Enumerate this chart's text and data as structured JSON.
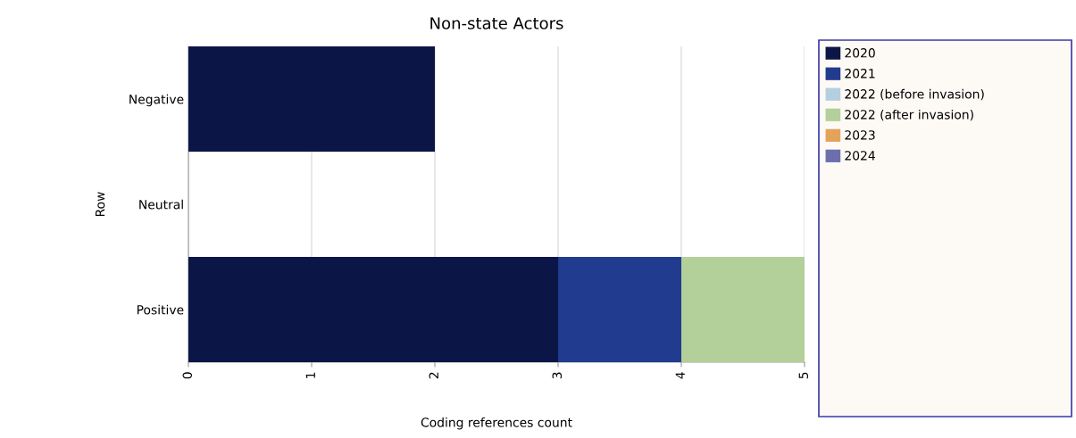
{
  "chart_data": {
    "type": "bar",
    "orientation": "horizontal",
    "stacked": true,
    "title": "Non-state Actors",
    "xlabel": "Coding references count",
    "ylabel": "Row",
    "categories": [
      "Negative",
      "Neutral",
      "Positive"
    ],
    "series": [
      {
        "name": "2020",
        "color": "#0b1646",
        "values": [
          2,
          0,
          3
        ]
      },
      {
        "name": "2021",
        "color": "#213b8f",
        "values": [
          0,
          0,
          1
        ]
      },
      {
        "name": "2022 (before invasion)",
        "color": "#b4cfe0",
        "values": [
          0,
          0,
          0
        ]
      },
      {
        "name": "2022 (after invasion)",
        "color": "#b3cf9a",
        "values": [
          0,
          0,
          1
        ]
      },
      {
        "name": "2023",
        "color": "#e3a35a",
        "values": [
          0,
          0,
          0
        ]
      },
      {
        "name": "2024",
        "color": "#6b6fae",
        "values": [
          0,
          0,
          0
        ]
      }
    ],
    "xlim": [
      0,
      5
    ],
    "xticks": [
      0,
      1,
      2,
      3,
      4,
      5
    ],
    "grid": "x",
    "legend": "right"
  }
}
